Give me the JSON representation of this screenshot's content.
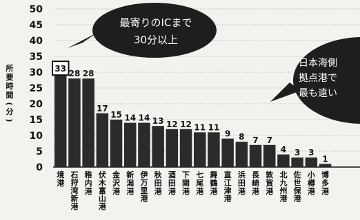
{
  "chart_data": {
    "type": "bar",
    "ylabel": "所要時間（分）",
    "ylim": [
      0,
      50
    ],
    "yticks": [
      0,
      5,
      10,
      15,
      20,
      25,
      30,
      35,
      40,
      45,
      50
    ],
    "categories": [
      "境港",
      "石狩湾新港",
      "稚内港",
      "伏木富山港",
      "金沢港",
      "新潟港",
      "伊万里港",
      "秋田港",
      "酒田港",
      "下関港",
      "七尾港",
      "舞鶴港",
      "直江津港",
      "浜田港",
      "長崎港",
      "敦賀港",
      "北九州港",
      "佐世保港",
      "小樽港",
      "博多港"
    ],
    "values": [
      33,
      28,
      28,
      17,
      15,
      14,
      14,
      13,
      12,
      12,
      11,
      11,
      9,
      8,
      7,
      7,
      4,
      3,
      3,
      1
    ],
    "value_labels": [
      "33",
      "28",
      "28",
      "17",
      "15",
      "14",
      "14",
      "13",
      "12",
      "12",
      "11",
      "11",
      "9",
      "8",
      "7",
      "7",
      "4",
      "3",
      "3",
      "1"
    ],
    "highlight_index": 0,
    "colors": {
      "bar": "#2b2b2b",
      "background": "#f2f2ef",
      "callout": "#1e1e1e"
    },
    "annotations": [
      {
        "lines": [
          "最寄りのICまで",
          "30分以上"
        ]
      },
      {
        "lines": [
          "日本海側",
          "拠点港で",
          "最も遠い"
        ]
      }
    ]
  }
}
